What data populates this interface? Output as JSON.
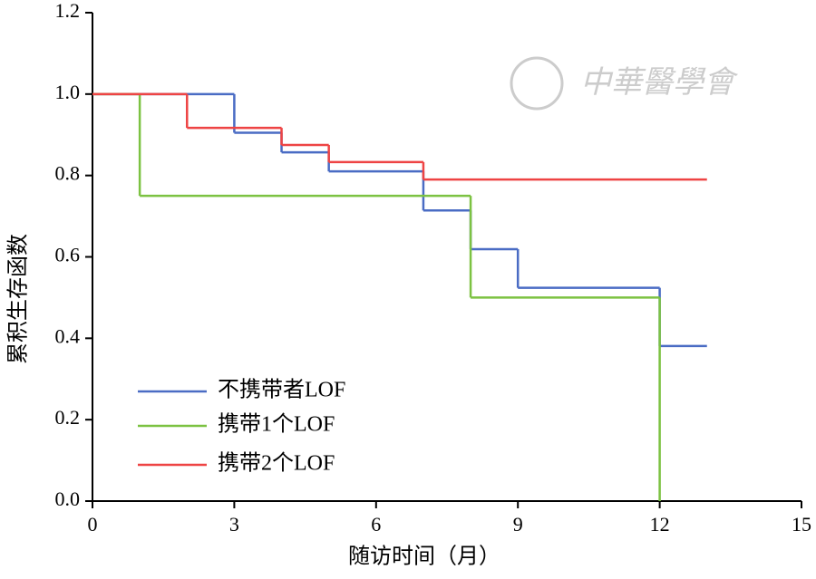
{
  "chart_data": {
    "type": "step-line",
    "watermark": "中華醫學會",
    "x_label": "随访时间（月）",
    "y_label": "累积生存函数",
    "xlim": [
      0,
      15
    ],
    "xticks": [
      0,
      3,
      6,
      9,
      12,
      15
    ],
    "ylim": [
      0,
      1.2
    ],
    "yticks": [
      {
        "value": 0,
        "label": "0.0"
      },
      {
        "value": 0.2,
        "label": "0.2"
      },
      {
        "value": 0.4,
        "label": "0.4"
      },
      {
        "value": 0.6,
        "label": "0.6"
      },
      {
        "value": 0.8,
        "label": "0.8"
      },
      {
        "value": 1,
        "label": "1.0"
      },
      {
        "value": 1.2,
        "label": "1.2"
      }
    ],
    "legend": "lower-left",
    "series": [
      {
        "name": "不携带者LOF",
        "color": "#4a6cc4",
        "x": [
          0,
          3,
          4,
          5,
          7,
          8,
          9,
          12,
          13
        ],
        "values": [
          1.0,
          0.905,
          0.857,
          0.81,
          0.714,
          0.619,
          0.524,
          0.381,
          0.381
        ]
      },
      {
        "name": "携带1个LOF",
        "color": "#7cc242",
        "x": [
          0,
          1,
          8,
          12
        ],
        "values": [
          1.0,
          0.75,
          0.5,
          0
        ]
      },
      {
        "name": "携带2个LOF",
        "color": "#ee4444",
        "x": [
          0,
          2,
          4,
          5,
          7,
          13
        ],
        "values": [
          1.0,
          0.917,
          0.875,
          0.833,
          0.79,
          0.79
        ]
      }
    ]
  }
}
